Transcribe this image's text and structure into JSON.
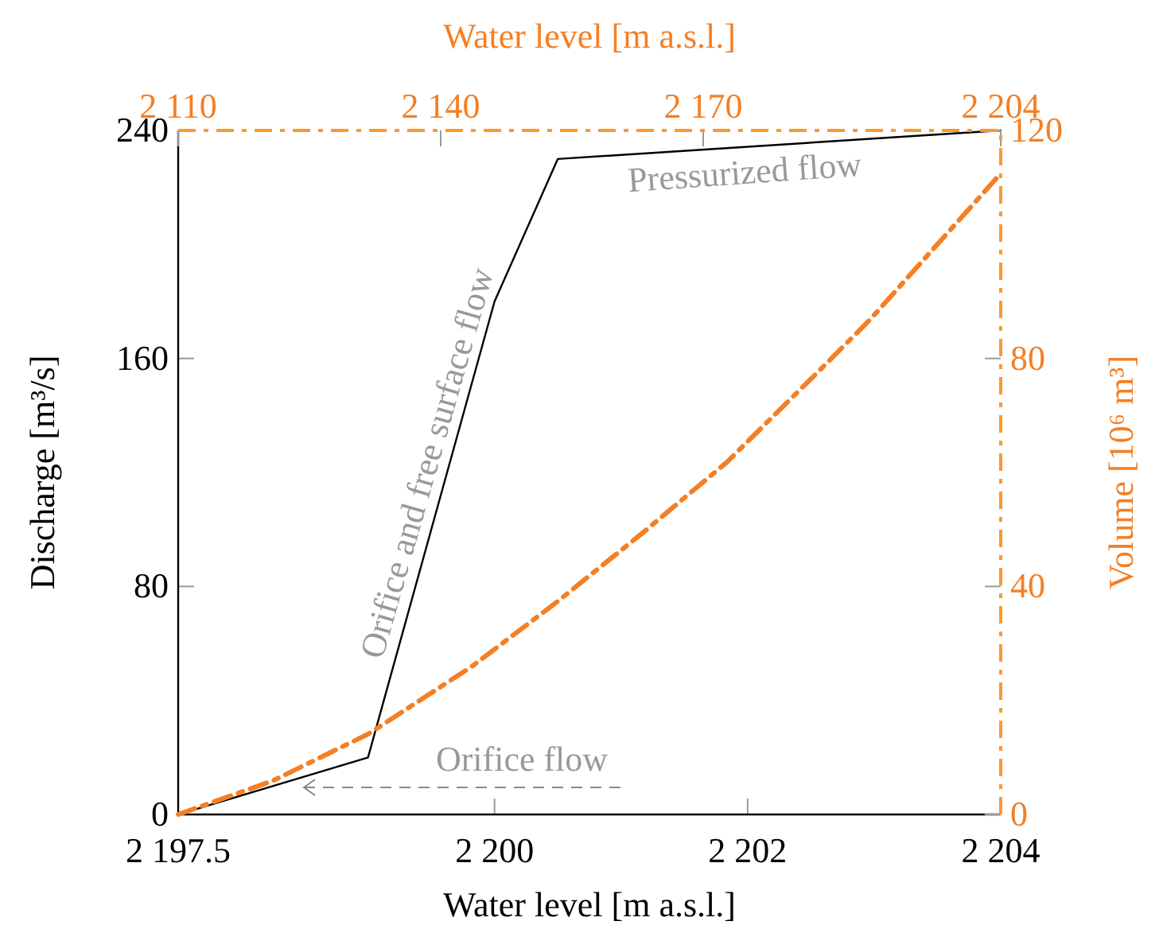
{
  "chart_data": [
    {
      "type": "line",
      "xlabel": "Water level [m a.s.l.]",
      "ylabel": "Discharge [m³/s]",
      "xlim": [
        2197.5,
        2204
      ],
      "xticks": [
        {
          "value": 2197.5,
          "label": "2 197.5"
        },
        {
          "value": 2200,
          "label": "2 200"
        },
        {
          "value": 2202,
          "label": "2 202"
        },
        {
          "value": 2204,
          "label": "2 204"
        }
      ],
      "ylim": [
        0,
        240
      ],
      "yticks": [
        0,
        80,
        160,
        240
      ],
      "series": [
        {
          "color": "#000000",
          "line_style": "solid",
          "x": [
            2197.5,
            2199.0,
            2200.0,
            2200.5,
            2204
          ],
          "values": [
            0,
            20,
            180,
            230,
            240
          ]
        }
      ],
      "annotations": [
        "Pressurized flow",
        "Orifice and free surface flow",
        "Orifice flow"
      ],
      "grid": false,
      "marker": "none"
    },
    {
      "type": "line",
      "xlabel": "Water level [m a.s.l.]",
      "ylabel": "Volume [10⁶ m³]",
      "xlim": [
        2110,
        2204
      ],
      "xticks": [
        {
          "value": 2110,
          "label": "2 110"
        },
        {
          "value": 2140,
          "label": "2 140"
        },
        {
          "value": 2170,
          "label": "2 170"
        },
        {
          "value": 2204,
          "label": "2 204"
        }
      ],
      "ylim": [
        0,
        120
      ],
      "yticks": [
        0,
        40,
        80,
        120
      ],
      "series": [
        {
          "color": "#f47f24",
          "line_style": "dashed",
          "x": [
            2110,
            2120.8,
            2131.7,
            2143.5,
            2153.3,
            2163,
            2172.7,
            2182.5,
            2189,
            2203.8
          ],
          "values": [
            0,
            5.9,
            14.1,
            25.9,
            37.3,
            49.3,
            61.8,
            76.7,
            86.7,
            112.1
          ]
        }
      ],
      "grid": false,
      "marker": "none"
    }
  ]
}
